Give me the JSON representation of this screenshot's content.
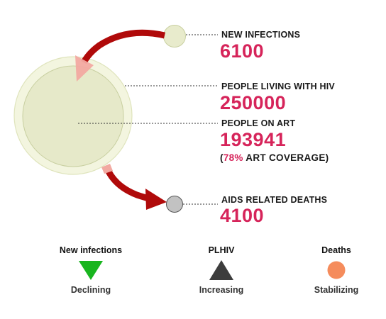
{
  "chart_data": {
    "type": "diagram",
    "metrics": {
      "new_infections": {
        "label": "NEW INFECTIONS",
        "value": 6100
      },
      "plhiv": {
        "label": "PEOPLE LIVING WITH HIV",
        "value": 250000
      },
      "on_art": {
        "label": "PEOPLE ON ART",
        "value": 193941,
        "coverage_pct": 78,
        "coverage_text": "ART COVERAGE"
      },
      "deaths": {
        "label": "AIDS RELATED DEATHS",
        "value": 4100
      }
    },
    "trends": [
      {
        "name": "New infections",
        "status": "Declining",
        "icon": "triangle-down-icon",
        "color": "#19b51f"
      },
      {
        "name": "PLHIV",
        "status": "Increasing",
        "icon": "triangle-up-icon",
        "color": "#3d3d3d"
      },
      {
        "name": "Deaths",
        "status": "Stabilizing",
        "icon": "circle-icon",
        "color": "#f58c5c"
      }
    ],
    "colors": {
      "arrow": "#b00a0a",
      "arrowhead_light": "#f2a9a1",
      "circle_fill": "#e6e9c9",
      "circle_outer": "#f3f5df",
      "circle_stroke": "#c8cfa0",
      "deaths_fill": "#c2c2c2",
      "value_color": "#d6245a"
    }
  }
}
